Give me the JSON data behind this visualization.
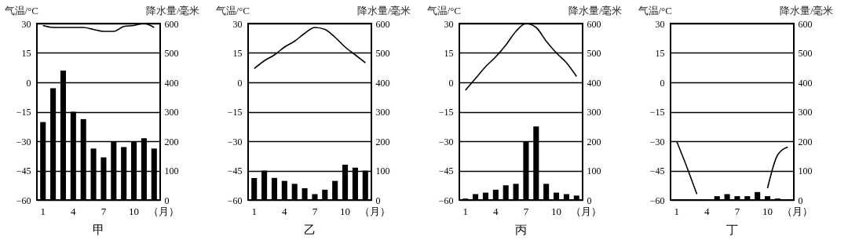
{
  "chart_data": [
    {
      "type": "bar",
      "title": "甲",
      "xlabel": "（月）",
      "ylabel": "气温/°C",
      "y2label": "降水量/毫米",
      "categories": [
        "1",
        null,
        null,
        "4",
        null,
        null,
        "7",
        null,
        null,
        "10",
        null,
        null
      ],
      "ylim": [
        -60,
        30
      ],
      "yticks": [
        -60,
        -45,
        -30,
        -15,
        0,
        15,
        30
      ],
      "y2lim": [
        0,
        600
      ],
      "y2ticks": [
        0,
        100,
        200,
        300,
        400,
        500,
        600
      ],
      "grid": "y",
      "series": [
        {
          "axis": "y2",
          "color": "#000000",
          "values": [
            265,
            380,
            440,
            300,
            275,
            175,
            145,
            200,
            180,
            200,
            210,
            175
          ]
        },
        {
          "type": "line",
          "color": "#000000",
          "values": [
            29,
            28,
            28,
            28,
            28,
            27,
            26,
            26,
            28.5,
            29,
            30,
            28
          ]
        }
      ]
    },
    {
      "type": "bar",
      "title": "乙",
      "xlabel": "（月）",
      "ylabel": "气温/°C",
      "y2label": "降水量/毫米",
      "categories": [
        "1",
        null,
        null,
        "4",
        null,
        null,
        "7",
        null,
        null,
        "10",
        null,
        null
      ],
      "ylim": [
        -60,
        30
      ],
      "yticks": [
        -60,
        -45,
        -30,
        -15,
        0,
        15,
        30
      ],
      "y2lim": [
        0,
        600
      ],
      "y2ticks": [
        0,
        100,
        200,
        300,
        400,
        500,
        600
      ],
      "grid": "y",
      "series": [
        {
          "axis": "y2",
          "color": "#000000",
          "values": [
            75,
            100,
            75,
            65,
            55,
            40,
            20,
            35,
            65,
            120,
            110,
            100
          ]
        },
        {
          "type": "line",
          "color": "#000000",
          "values": [
            7,
            11,
            14,
            18,
            21,
            25,
            28,
            27,
            23,
            18,
            14,
            10
          ]
        }
      ]
    },
    {
      "type": "bar",
      "title": "丙",
      "xlabel": "（月）",
      "ylabel": "气温/°C",
      "y2label": "降水量/毫米",
      "categories": [
        "1",
        null,
        null,
        "4",
        null,
        null,
        "7",
        null,
        null,
        "10",
        null,
        null
      ],
      "ylim": [
        -60,
        30
      ],
      "yticks": [
        -60,
        -45,
        -30,
        -15,
        0,
        15,
        30
      ],
      "y2lim": [
        0,
        600
      ],
      "y2ticks": [
        0,
        100,
        200,
        300,
        400,
        500,
        600
      ],
      "grid": "y",
      "series": [
        {
          "axis": "y2",
          "color": "#000000",
          "values": [
            5,
            20,
            25,
            35,
            50,
            55,
            200,
            250,
            55,
            25,
            20,
            15
          ]
        },
        {
          "type": "line",
          "color": "#000000",
          "values": [
            -4,
            2,
            8,
            13,
            19,
            26,
            30,
            28,
            21,
            15,
            10,
            3
          ]
        }
      ]
    },
    {
      "type": "bar",
      "title": "丁",
      "xlabel": "（月）",
      "ylabel": "气温/°C",
      "y2label": "降水量/毫米",
      "categories": [
        "1",
        null,
        null,
        "4",
        null,
        null,
        "7",
        null,
        null,
        "10",
        null,
        null
      ],
      "ylim": [
        -60,
        30
      ],
      "yticks": [
        -60,
        -45,
        -30,
        -15,
        0,
        15,
        30
      ],
      "y2lim": [
        0,
        600
      ],
      "y2ticks": [
        0,
        100,
        200,
        300,
        400,
        500,
        600
      ],
      "grid": "y",
      "series": [
        {
          "axis": "y2",
          "color": "#000000",
          "values": [
            0,
            0,
            0,
            0,
            13,
            20,
            13,
            13,
            27,
            13,
            5,
            0
          ]
        },
        {
          "type": "line",
          "color": "#000000",
          "values": [
            -30,
            -43,
            -57,
            null,
            null,
            null,
            null,
            null,
            null,
            -54,
            -37,
            -33
          ]
        }
      ]
    }
  ]
}
